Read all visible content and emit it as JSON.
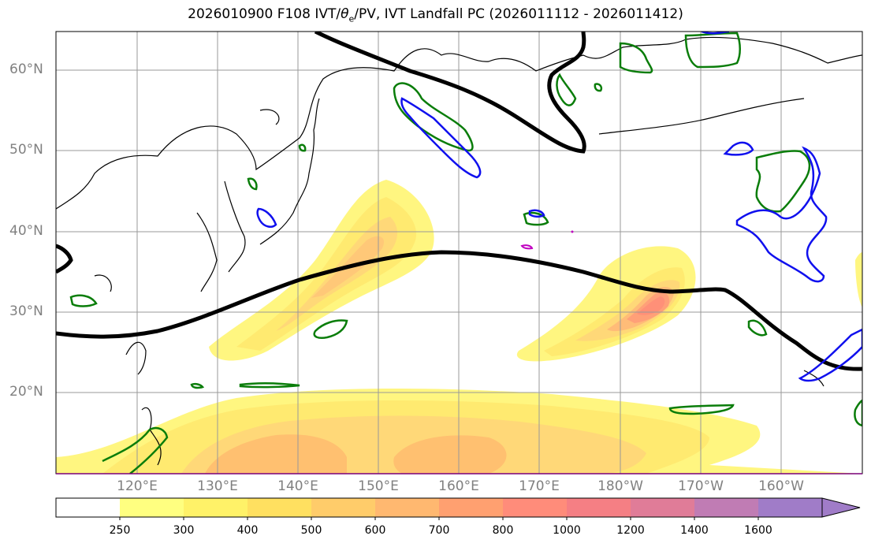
{
  "title": {
    "prefix": "2026010900 F108 IVT/",
    "theta_symbol": "θ",
    "theta_sub": "e",
    "suffix": "/PV, IVT Landfall PC (2026011112 - 2026011412)"
  },
  "map": {
    "lat_labels": [
      "60°N",
      "50°N",
      "40°N",
      "30°N",
      "20°N"
    ],
    "lon_labels": [
      "120°E",
      "130°E",
      "140°E",
      "150°E",
      "160°E",
      "170°E",
      "180°W",
      "170°W",
      "160°W"
    ]
  },
  "colorbar": {
    "levels": [
      "250",
      "300",
      "400",
      "500",
      "600",
      "700",
      "800",
      "1000",
      "1200",
      "1400",
      "1600"
    ],
    "colors": [
      "#ffffff",
      "#ffff80",
      "#fff268",
      "#ffe060",
      "#ffcc6a",
      "#ffb870",
      "#ffa070",
      "#ff8c7a",
      "#f57f84",
      "#e07c98",
      "#c07cb4",
      "#a07cc8"
    ]
  }
}
